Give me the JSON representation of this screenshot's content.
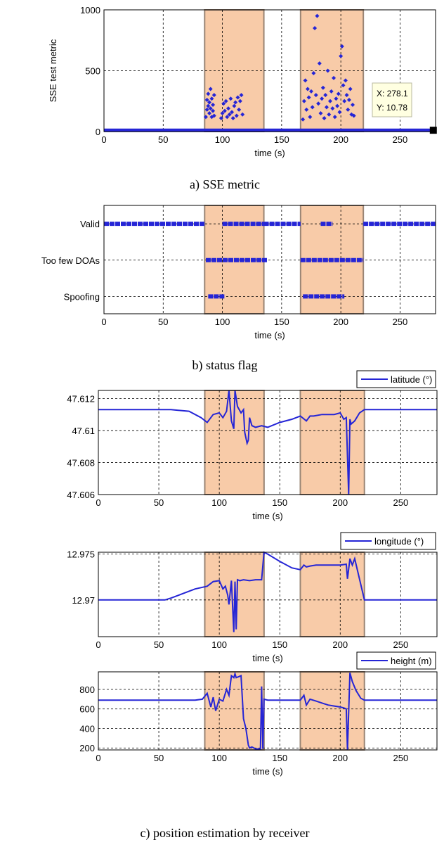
{
  "captions": {
    "a": "a) SSE metric",
    "b": "b) status flag",
    "c": "c) position estimation by receiver"
  },
  "colors": {
    "series": "#2525d6",
    "shade_fill": "#f8cba8",
    "shade_stroke": "#9a8575",
    "grid": "#000000",
    "datatip_bg": "#ffffe1"
  },
  "chart_data": [
    {
      "id": "sse",
      "type": "scatter",
      "xlabel": "time (s)",
      "ylabel": "SSE test metric",
      "xlim": [
        0,
        280
      ],
      "ylim": [
        0,
        1000
      ],
      "xticks": [
        0,
        50,
        100,
        150,
        200,
        250
      ],
      "yticks": [
        0,
        500,
        1000
      ],
      "grid": true,
      "shaded_intervals": [
        [
          85,
          135
        ],
        [
          166,
          219
        ]
      ],
      "datatip": {
        "x_label": "X: 278.1",
        "y_label": "Y: 10.78",
        "x": 278.1,
        "y": 10.78
      },
      "baseline": 10,
      "points": [
        [
          86,
          120
        ],
        [
          87,
          180
        ],
        [
          87,
          260
        ],
        [
          88,
          210
        ],
        [
          88,
          310
        ],
        [
          89,
          150
        ],
        [
          89,
          240
        ],
        [
          90,
          190
        ],
        [
          90,
          350
        ],
        [
          91,
          120
        ],
        [
          91,
          270
        ],
        [
          92,
          220
        ],
        [
          92,
          170
        ],
        [
          93,
          300
        ],
        [
          93,
          130
        ],
        [
          99,
          110
        ],
        [
          100,
          150
        ],
        [
          101,
          230
        ],
        [
          102,
          170
        ],
        [
          103,
          250
        ],
        [
          104,
          120
        ],
        [
          105,
          190
        ],
        [
          106,
          140
        ],
        [
          107,
          270
        ],
        [
          108,
          160
        ],
        [
          109,
          110
        ],
        [
          110,
          210
        ],
        [
          111,
          240
        ],
        [
          112,
          130
        ],
        [
          113,
          280
        ],
        [
          114,
          180
        ],
        [
          115,
          250
        ],
        [
          116,
          300
        ],
        [
          117,
          140
        ],
        [
          168,
          100
        ],
        [
          169,
          250
        ],
        [
          170,
          420
        ],
        [
          171,
          180
        ],
        [
          172,
          350
        ],
        [
          173,
          280
        ],
        [
          174,
          120
        ],
        [
          175,
          330
        ],
        [
          176,
          200
        ],
        [
          177,
          480
        ],
        [
          178,
          850
        ],
        [
          179,
          300
        ],
        [
          180,
          950
        ],
        [
          181,
          230
        ],
        [
          182,
          560
        ],
        [
          183,
          150
        ],
        [
          184,
          270
        ],
        [
          185,
          360
        ],
        [
          186,
          110
        ],
        [
          187,
          300
        ],
        [
          188,
          200
        ],
        [
          189,
          500
        ],
        [
          190,
          140
        ],
        [
          191,
          250
        ],
        [
          192,
          330
        ],
        [
          193,
          190
        ],
        [
          194,
          440
        ],
        [
          195,
          120
        ],
        [
          196,
          270
        ],
        [
          197,
          210
        ],
        [
          198,
          310
        ],
        [
          199,
          160
        ],
        [
          200,
          620
        ],
        [
          201,
          700
        ],
        [
          202,
          380
        ],
        [
          203,
          250
        ],
        [
          204,
          420
        ],
        [
          205,
          300
        ],
        [
          206,
          180
        ],
        [
          207,
          260
        ],
        [
          208,
          350
        ],
        [
          209,
          140
        ],
        [
          210,
          220
        ],
        [
          211,
          130
        ]
      ]
    },
    {
      "id": "status",
      "type": "scatter",
      "xlabel": "time (s)",
      "categories": [
        "Valid",
        "Too few DOAs",
        "Spoofing"
      ],
      "xlim": [
        0,
        280
      ],
      "xticks": [
        0,
        50,
        100,
        150,
        200,
        250
      ],
      "grid": true,
      "shaded_intervals": [
        [
          85,
          135
        ],
        [
          166,
          219
        ]
      ],
      "segments": [
        {
          "category": "Valid",
          "ranges": [
            [
              0,
              85
            ],
            [
              100,
              135
            ],
            [
              135,
              166
            ],
            [
              219,
              280
            ]
          ]
        },
        {
          "category": "Valid",
          "ranges": [
            [
              183,
              193
            ]
          ]
        },
        {
          "category": "Too few DOAs",
          "ranges": [
            [
              86,
              138
            ],
            [
              166,
              219
            ]
          ]
        },
        {
          "category": "Spoofing",
          "ranges": [
            [
              88,
              102
            ],
            [
              168,
              203
            ]
          ]
        }
      ]
    },
    {
      "id": "latitude",
      "type": "line",
      "xlabel": "time (s)",
      "xlim": [
        0,
        280
      ],
      "ylim": [
        47.606,
        47.6125
      ],
      "xticks": [
        0,
        50,
        100,
        150,
        200,
        250
      ],
      "yticks": [
        47.606,
        47.608,
        47.61,
        47.612
      ],
      "ytick_labels": [
        "47.606",
        "47.608",
        "47.61",
        "47.612"
      ],
      "grid": true,
      "legend": "latitude (°)",
      "legend_position": "top-right",
      "shaded_intervals": [
        [
          88,
          137
        ],
        [
          167,
          220
        ]
      ],
      "x": [
        0,
        60,
        75,
        85,
        90,
        95,
        100,
        103,
        106,
        108,
        110,
        112,
        113,
        115,
        118,
        120,
        121,
        123,
        124,
        125,
        127,
        130,
        135,
        140,
        150,
        160,
        167,
        172,
        175,
        178,
        185,
        195,
        200,
        203,
        205,
        207,
        208,
        209,
        212,
        216,
        220,
        230,
        250,
        280
      ],
      "y": [
        47.6113,
        47.6113,
        47.6112,
        47.6108,
        47.6105,
        47.611,
        47.6111,
        47.6108,
        47.6112,
        47.6125,
        47.6106,
        47.6101,
        47.6125,
        47.6115,
        47.6111,
        47.6113,
        47.6099,
        47.6092,
        47.6094,
        47.6108,
        47.6103,
        47.6102,
        47.6103,
        47.6102,
        47.6105,
        47.6107,
        47.6109,
        47.6106,
        47.6109,
        47.6109,
        47.611,
        47.611,
        47.6111,
        47.6107,
        47.6108,
        47.6058,
        47.6107,
        47.6104,
        47.6106,
        47.6111,
        47.6113,
        47.6113,
        47.6113,
        47.6113
      ]
    },
    {
      "id": "longitude",
      "type": "line",
      "xlabel": "time (s)",
      "xlim": [
        0,
        280
      ],
      "ylim": [
        12.966,
        12.9752
      ],
      "xticks": [
        0,
        50,
        100,
        150,
        200,
        250
      ],
      "yticks": [
        12.97,
        12.975
      ],
      "ytick_labels": [
        "12.97",
        "12.975"
      ],
      "grid": true,
      "legend": "longitude (°)",
      "legend_position": "top-right",
      "shaded_intervals": [
        [
          88,
          137
        ],
        [
          167,
          220
        ]
      ],
      "x": [
        0,
        55,
        60,
        70,
        80,
        90,
        95,
        100,
        103,
        105,
        107,
        108,
        110,
        112,
        113,
        114,
        115,
        117,
        120,
        125,
        130,
        135,
        137,
        140,
        150,
        160,
        167,
        170,
        172,
        175,
        180,
        190,
        200,
        205,
        206,
        208,
        210,
        212,
        220,
        225,
        240,
        260,
        280
      ],
      "y": [
        12.97,
        12.97,
        12.9702,
        12.9707,
        12.9712,
        12.9715,
        12.972,
        12.9721,
        12.9712,
        12.9715,
        12.9705,
        12.9695,
        12.9721,
        12.9665,
        12.972,
        12.9668,
        12.9722,
        12.9721,
        12.9722,
        12.9721,
        12.9722,
        12.9722,
        12.9752,
        12.975,
        12.9742,
        12.9735,
        12.9733,
        12.9738,
        12.9736,
        12.9737,
        12.9738,
        12.9738,
        12.9738,
        12.9739,
        12.9723,
        12.9745,
        12.9738,
        12.9745,
        12.97,
        12.97,
        12.97,
        12.97,
        12.97
      ]
    },
    {
      "id": "height",
      "type": "line",
      "xlabel": "time (s)",
      "xlim": [
        0,
        280
      ],
      "ylim": [
        180,
        980
      ],
      "xticks": [
        0,
        50,
        100,
        150,
        200,
        250
      ],
      "yticks": [
        200,
        400,
        600,
        800
      ],
      "grid": true,
      "legend": "height (m)",
      "legend_position": "top-right",
      "shaded_intervals": [
        [
          88,
          137
        ],
        [
          167,
          220
        ]
      ],
      "x": [
        0,
        20,
        40,
        60,
        80,
        86,
        90,
        93,
        95,
        97,
        100,
        103,
        106,
        108,
        110,
        112,
        113,
        114,
        116,
        118,
        120,
        122,
        124,
        125,
        127,
        130,
        134,
        135,
        136,
        137,
        140,
        150,
        160,
        167,
        170,
        172,
        175,
        180,
        185,
        190,
        195,
        200,
        203,
        205,
        206,
        208,
        210,
        213,
        217,
        220,
        240,
        260,
        280
      ],
      "y": [
        690,
        690,
        690,
        690,
        690,
        700,
        760,
        620,
        720,
        580,
        700,
        680,
        800,
        740,
        940,
        920,
        960,
        920,
        930,
        940,
        500,
        400,
        230,
        200,
        210,
        190,
        190,
        830,
        190,
        700,
        690,
        690,
        690,
        690,
        740,
        640,
        700,
        680,
        660,
        640,
        630,
        620,
        610,
        600,
        180,
        970,
        880,
        790,
        710,
        690,
        690,
        690,
        690
      ]
    }
  ]
}
